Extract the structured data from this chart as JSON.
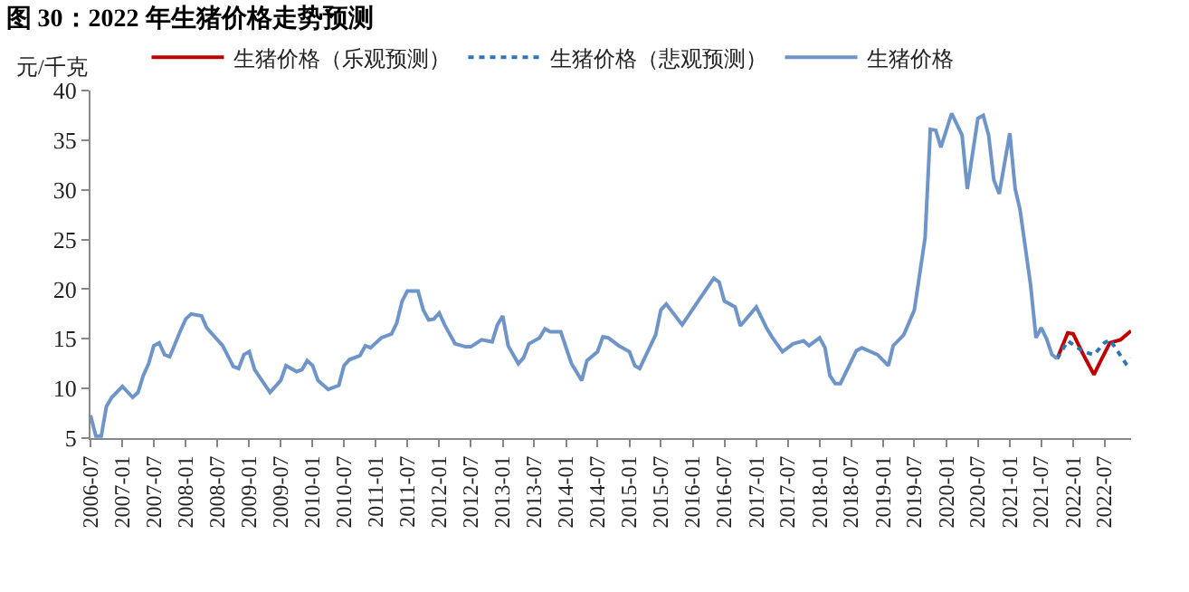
{
  "chart_data": {
    "type": "line",
    "title": "图 30：2022 年生猪价格走势预测",
    "ylabel": "元/千克",
    "xlim": [
      "2006-07",
      "2022-12"
    ],
    "xticks": [
      "2006-07",
      "2007-01",
      "2007-07",
      "2008-01",
      "2008-07",
      "2009-01",
      "2009-07",
      "2010-01",
      "2010-07",
      "2011-01",
      "2011-07",
      "2012-01",
      "2012-07",
      "2013-01",
      "2013-07",
      "2014-01",
      "2014-07",
      "2015-01",
      "2015-07",
      "2016-01",
      "2016-07",
      "2017-01",
      "2017-07",
      "2018-01",
      "2018-07",
      "2019-01",
      "2019-07",
      "2020-01",
      "2020-07",
      "2021-01",
      "2021-07",
      "2022-01",
      "2022-07"
    ],
    "ylim": [
      5,
      40
    ],
    "yticks": [
      5,
      10,
      15,
      20,
      25,
      30,
      35,
      40
    ],
    "grid": false,
    "legend": "top",
    "marker": "none",
    "series": [
      {
        "name": "生猪价格（乐观预测）",
        "color": "#c00000",
        "line_style": "solid",
        "x": [
          "2021-10",
          "2021-12",
          "2022-01",
          "2022-03",
          "2022-05",
          "2022-06",
          "2022-08",
          "2022-10",
          "2022-12"
        ],
        "values": [
          13.0,
          15.6,
          15.5,
          13.4,
          11.4,
          12.5,
          14.6,
          14.9,
          15.8
        ]
      },
      {
        "name": "生猪价格（悲观预测）",
        "color": "#2e75b6",
        "line_style": "dotted",
        "x": [
          "2021-10",
          "2021-12",
          "2022-03",
          "2022-05",
          "2022-07",
          "2022-08",
          "2022-11",
          "2022-12"
        ],
        "values": [
          13.0,
          14.8,
          13.7,
          13.4,
          14.6,
          14.9,
          12.5,
          13.0
        ]
      },
      {
        "name": "生猪价格",
        "color": "#6f95c8",
        "line_style": "solid",
        "x": [
          "2006-07",
          "2006-08",
          "2006-09",
          "2006-10",
          "2006-11",
          "2007-01",
          "2007-03",
          "2007-04",
          "2007-05",
          "2007-06",
          "2007-07",
          "2007-08",
          "2007-09",
          "2007-10",
          "2007-12",
          "2008-01",
          "2008-02",
          "2008-04",
          "2008-05",
          "2008-06",
          "2008-08",
          "2008-10",
          "2008-11",
          "2008-12",
          "2009-01",
          "2009-02",
          "2009-05",
          "2009-07",
          "2009-08",
          "2009-10",
          "2009-11",
          "2009-12",
          "2010-01",
          "2010-02",
          "2010-04",
          "2010-06",
          "2010-07",
          "2010-08",
          "2010-10",
          "2010-11",
          "2010-12",
          "2011-02",
          "2011-04",
          "2011-05",
          "2011-06",
          "2011-07",
          "2011-09",
          "2011-10",
          "2011-11",
          "2011-12",
          "2012-01",
          "2012-02",
          "2012-04",
          "2012-06",
          "2012-07",
          "2012-09",
          "2012-11",
          "2012-12",
          "2013-01",
          "2013-02",
          "2013-04",
          "2013-05",
          "2013-06",
          "2013-08",
          "2013-09",
          "2013-10",
          "2013-12",
          "2014-02",
          "2014-04",
          "2014-05",
          "2014-07",
          "2014-08",
          "2014-09",
          "2014-11",
          "2015-01",
          "2015-02",
          "2015-03",
          "2015-06",
          "2015-07",
          "2015-08",
          "2015-11",
          "2016-02",
          "2016-05",
          "2016-06",
          "2016-07",
          "2016-09",
          "2016-10",
          "2017-01",
          "2017-03",
          "2017-04",
          "2017-06",
          "2017-08",
          "2017-10",
          "2017-11",
          "2018-01",
          "2018-02",
          "2018-03",
          "2018-04",
          "2018-05",
          "2018-08",
          "2018-09",
          "2018-12",
          "2019-02",
          "2019-03",
          "2019-05",
          "2019-07",
          "2019-09",
          "2019-10",
          "2019-11",
          "2019-12",
          "2020-02",
          "2020-04",
          "2020-05",
          "2020-07",
          "2020-08",
          "2020-09",
          "2020-10",
          "2020-11",
          "2021-01",
          "2021-02",
          "2021-03",
          "2021-05",
          "2021-06",
          "2021-07",
          "2021-08",
          "2021-09",
          "2021-10"
        ],
        "values": [
          7.3,
          5.2,
          5.2,
          8.2,
          9.1,
          10.2,
          9.1,
          9.6,
          11.3,
          12.5,
          14.3,
          14.6,
          13.4,
          13.2,
          15.8,
          17.0,
          17.5,
          17.3,
          16.1,
          15.5,
          14.3,
          12.2,
          12.0,
          13.4,
          13.7,
          11.9,
          9.6,
          10.8,
          12.3,
          11.7,
          11.9,
          12.8,
          12.3,
          10.8,
          9.9,
          10.3,
          12.3,
          12.9,
          13.3,
          14.3,
          14.1,
          15.1,
          15.5,
          16.6,
          18.8,
          19.8,
          19.8,
          17.9,
          16.9,
          17.0,
          17.6,
          16.4,
          14.5,
          14.2,
          14.2,
          14.9,
          14.7,
          16.4,
          17.3,
          14.3,
          12.5,
          13.1,
          14.5,
          15.1,
          16.0,
          15.7,
          15.7,
          12.5,
          10.8,
          12.8,
          13.7,
          15.2,
          15.1,
          14.3,
          13.7,
          12.3,
          12.0,
          15.4,
          17.9,
          18.5,
          16.4,
          18.8,
          21.1,
          20.7,
          18.8,
          18.2,
          16.3,
          18.2,
          16.1,
          15.2,
          13.7,
          14.5,
          14.8,
          14.3,
          15.1,
          14.1,
          11.3,
          10.5,
          10.5,
          13.8,
          14.1,
          13.4,
          12.3,
          14.3,
          15.4,
          17.9,
          25.2,
          36.1,
          36.0,
          34.3,
          37.7,
          35.5,
          30.1,
          37.2,
          37.5,
          35.5,
          31.0,
          29.6,
          35.7,
          30.1,
          28.0,
          20.4,
          15.1,
          16.1,
          15.0,
          13.4,
          13.0
        ]
      }
    ]
  }
}
